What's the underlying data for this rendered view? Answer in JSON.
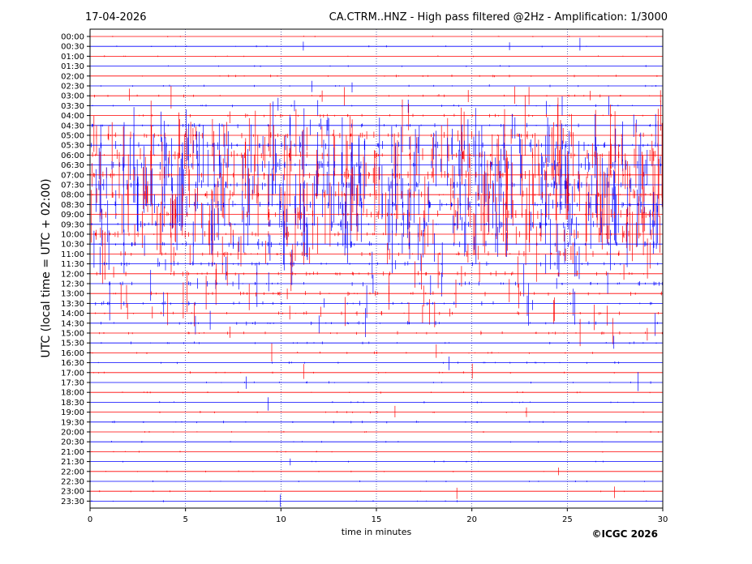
{
  "chart_data": {
    "type": "line",
    "date": "17-04-2026",
    "title": "CA.CTRM..HNZ - High pass filtered @2Hz - Amplification: 1/3000",
    "xlabel": "time in minutes",
    "ylabel": "UTC (local time = UTC + 02:00)",
    "copyright": "©ICGC 2026",
    "xlim": [
      0,
      30
    ],
    "x_ticks": [
      "0",
      "5",
      "10",
      "15",
      "20",
      "25",
      "30"
    ],
    "x_tick_values": [
      0,
      5,
      10,
      15,
      20,
      25,
      30
    ],
    "grid": "vertical dotted at x ticks",
    "row_colors": [
      "#ff0000",
      "#0000ff"
    ],
    "rows": [
      {
        "label": "00:00",
        "activity": 0.05
      },
      {
        "label": "00:30",
        "activity": 0.08
      },
      {
        "label": "01:00",
        "activity": 0.05
      },
      {
        "label": "01:30",
        "activity": 0.07
      },
      {
        "label": "02:00",
        "activity": 0.15
      },
      {
        "label": "02:30",
        "activity": 0.15
      },
      {
        "label": "03:00",
        "activity": 0.25
      },
      {
        "label": "03:30",
        "activity": 0.2
      },
      {
        "label": "04:00",
        "activity": 0.3
      },
      {
        "label": "04:30",
        "activity": 0.4
      },
      {
        "label": "05:00",
        "activity": 0.8
      },
      {
        "label": "05:30",
        "activity": 0.9
      },
      {
        "label": "06:00",
        "activity": 1.0
      },
      {
        "label": "06:30",
        "activity": 1.0
      },
      {
        "label": "07:00",
        "activity": 1.0
      },
      {
        "label": "07:30",
        "activity": 1.0
      },
      {
        "label": "08:00",
        "activity": 1.0
      },
      {
        "label": "08:30",
        "activity": 1.0
      },
      {
        "label": "09:00",
        "activity": 1.0
      },
      {
        "label": "09:30",
        "activity": 0.9
      },
      {
        "label": "10:00",
        "activity": 0.8
      },
      {
        "label": "10:30",
        "activity": 0.7
      },
      {
        "label": "11:00",
        "activity": 0.6
      },
      {
        "label": "11:30",
        "activity": 0.5
      },
      {
        "label": "12:00",
        "activity": 0.5
      },
      {
        "label": "12:30",
        "activity": 0.45
      },
      {
        "label": "13:00",
        "activity": 0.45
      },
      {
        "label": "13:30",
        "activity": 0.4
      },
      {
        "label": "14:00",
        "activity": 0.35
      },
      {
        "label": "14:30",
        "activity": 0.3
      },
      {
        "label": "15:00",
        "activity": 0.3
      },
      {
        "label": "15:30",
        "activity": 0.2
      },
      {
        "label": "16:00",
        "activity": 0.15
      },
      {
        "label": "16:30",
        "activity": 0.15
      },
      {
        "label": "17:00",
        "activity": 0.12
      },
      {
        "label": "17:30",
        "activity": 0.12
      },
      {
        "label": "18:00",
        "activity": 0.1
      },
      {
        "label": "18:30",
        "activity": 0.1
      },
      {
        "label": "19:00",
        "activity": 0.12
      },
      {
        "label": "19:30",
        "activity": 0.15
      },
      {
        "label": "20:00",
        "activity": 0.08
      },
      {
        "label": "20:30",
        "activity": 0.06
      },
      {
        "label": "21:00",
        "activity": 0.05
      },
      {
        "label": "21:30",
        "activity": 0.05
      },
      {
        "label": "22:00",
        "activity": 0.05
      },
      {
        "label": "22:30",
        "activity": 0.05
      },
      {
        "label": "23:00",
        "activity": 0.05
      },
      {
        "label": "23:30",
        "activity": 0.05
      }
    ]
  }
}
